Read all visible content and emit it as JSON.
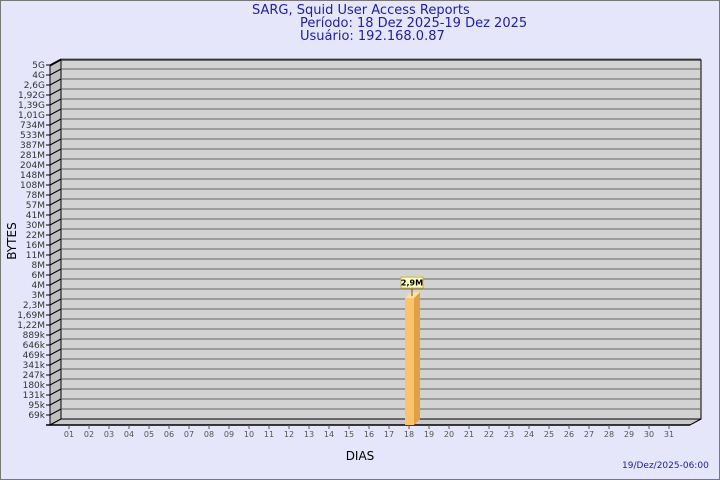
{
  "header": {
    "title": "SARG, Squid User Access Reports",
    "period": "Período: 18 Dez 2025-19 Dez 2025",
    "user": "Usuário: 192.168.0.87"
  },
  "footer": {
    "timestamp": "19/Dez/2025-06:00"
  },
  "colors": {
    "bar": "#fcc46a",
    "bar_side": "#e0a048",
    "bar_top": "#ffe09a",
    "wall": "#d3d3d3",
    "background": "#e6e6fa",
    "title": "#2020a0"
  },
  "chart_data": {
    "type": "bar",
    "style": "3d",
    "xlabel": "DIAS",
    "ylabel": "BYTES",
    "y_scale": "log",
    "grid": true,
    "categories": [
      "01",
      "02",
      "03",
      "04",
      "05",
      "06",
      "07",
      "08",
      "09",
      "10",
      "11",
      "12",
      "13",
      "14",
      "15",
      "16",
      "17",
      "18",
      "19",
      "20",
      "21",
      "22",
      "23",
      "24",
      "25",
      "26",
      "27",
      "28",
      "29",
      "30",
      "31"
    ],
    "yticks": [
      "5G",
      "4G",
      "2,6G",
      "1,92G",
      "1,39G",
      "1,01G",
      "734M",
      "533M",
      "387M",
      "281M",
      "204M",
      "148M",
      "108M",
      "78M",
      "57M",
      "41M",
      "30M",
      "22M",
      "16M",
      "11M",
      "8M",
      "6M",
      "4M",
      "3M",
      "2,3M",
      "1,69M",
      "1,22M",
      "889k",
      "646k",
      "469k",
      "341k",
      "247k",
      "180k",
      "131k",
      "95k",
      "69k"
    ],
    "bars": [
      {
        "category": "18",
        "value": 2900000,
        "label": "2,9M"
      }
    ]
  }
}
